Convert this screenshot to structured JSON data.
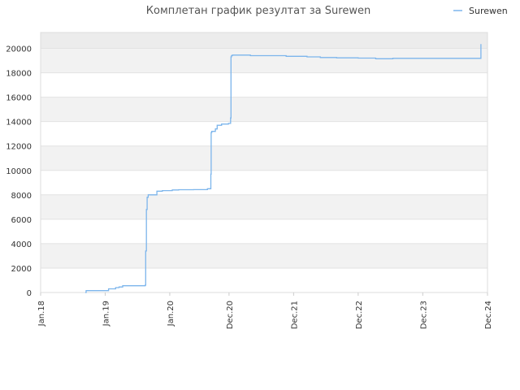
{
  "chart_data": {
    "type": "line",
    "title": "Комплетан график резултат за Surewen",
    "xlabel": "",
    "ylabel": "",
    "legend": {
      "position": "top-right",
      "entries": [
        "Surewen"
      ]
    },
    "grid": true,
    "x_tick_labels": [
      "Jan.18",
      "Jan.19",
      "Jan.20",
      "Dec.20",
      "Dec.21",
      "Dec.22",
      "Dec.23",
      "Dec.24"
    ],
    "y_tick_labels": [
      "0",
      "2000",
      "4000",
      "6000",
      "8000",
      "10000",
      "12000",
      "14000",
      "16000",
      "18000",
      "20000"
    ],
    "ylim": [
      0,
      21300
    ],
    "series": [
      {
        "name": "Surewen",
        "color": "#7cb5ec",
        "x": [
          "2018-09-10",
          "2018-09-15",
          "2019-01-12",
          "2019-01-20",
          "2019-03-01",
          "2019-03-20",
          "2019-04-10",
          "2019-08-15",
          "2019-08-18",
          "2019-08-22",
          "2019-08-26",
          "2019-09-01",
          "2019-10-20",
          "2019-11-20",
          "2020-01-15",
          "2020-02-20",
          "2020-05-15",
          "2020-08-01",
          "2020-08-20",
          "2020-08-22",
          "2020-08-25",
          "2020-09-15",
          "2020-09-25",
          "2020-10-20",
          "2020-11-28",
          "2020-12-10",
          "2020-12-12",
          "2020-12-15",
          "2020-12-20",
          "2021-04-01",
          "2021-10-20",
          "2022-02-15",
          "2022-05-01",
          "2022-08-01",
          "2022-12-01",
          "2023-03-10",
          "2023-06-15",
          "2024-10-25"
        ],
        "y": [
          0,
          150,
          150,
          300,
          400,
          450,
          550,
          600,
          3400,
          6800,
          7800,
          8000,
          8300,
          8350,
          8400,
          8420,
          8430,
          8500,
          9700,
          13100,
          13200,
          13400,
          13700,
          13800,
          13850,
          14300,
          19300,
          19400,
          19450,
          19400,
          19350,
          19300,
          19250,
          19220,
          19200,
          19150,
          19180,
          20350
        ]
      }
    ]
  }
}
